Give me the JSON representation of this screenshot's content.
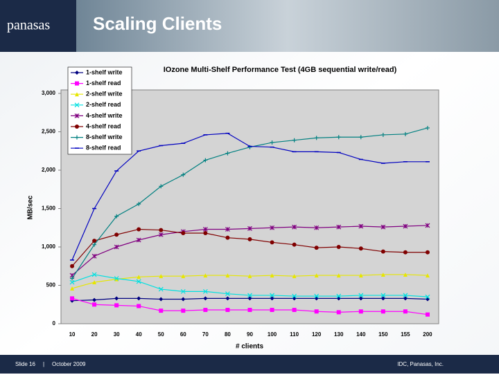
{
  "slide": {
    "logo": "panasas",
    "title": "Scaling Clients",
    "footer_slide": "Slide 16",
    "footer_separator": "|",
    "footer_date": "October 2009",
    "footer_right": "IDC, Panasas, Inc."
  },
  "chart_data": {
    "type": "line",
    "title": "IOzone Multi-Shelf Performance Test (4GB sequential write/read)",
    "y_label": "MB/sec",
    "x_label": "# clients",
    "categories": [
      "10",
      "20",
      "30",
      "40",
      "50",
      "60",
      "70",
      "80",
      "90",
      "100",
      "110",
      "120",
      "130",
      "140",
      "150",
      "155",
      "200"
    ],
    "ylim": [
      0,
      3000
    ],
    "yticks": [
      0,
      500,
      {
        "value": 1000,
        "label": "1,000"
      },
      {
        "value": 1500,
        "label": "1,500"
      },
      {
        "value": 2000,
        "label": "2,000"
      },
      {
        "value": 2500,
        "label": "2,500"
      },
      {
        "value": 3000,
        "label": "3,000"
      }
    ],
    "legend": "top-left",
    "series": [
      {
        "name": "1-shelf write",
        "color": "#000080",
        "marker": "diamond",
        "values": [
          300,
          310,
          330,
          330,
          320,
          320,
          330,
          330,
          330,
          330,
          330,
          330,
          330,
          330,
          330,
          330,
          320
        ]
      },
      {
        "name": "1-shelf read",
        "color": "#ff00ff",
        "marker": "square",
        "values": [
          330,
          250,
          240,
          230,
          170,
          170,
          180,
          180,
          180,
          180,
          180,
          160,
          150,
          160,
          160,
          160,
          120
        ]
      },
      {
        "name": "2-shelf write",
        "color": "#e6e600",
        "marker": "triangle",
        "values": [
          460,
          540,
          580,
          610,
          620,
          620,
          630,
          630,
          620,
          630,
          620,
          630,
          630,
          630,
          640,
          640,
          630
        ]
      },
      {
        "name": "2-shelf read",
        "color": "#00e0e0",
        "marker": "x",
        "values": [
          540,
          640,
          590,
          550,
          450,
          420,
          420,
          390,
          370,
          370,
          360,
          360,
          360,
          370,
          370,
          370,
          350
        ]
      },
      {
        "name": "4-shelf write",
        "color": "#800080",
        "marker": "star",
        "values": [
          630,
          880,
          1000,
          1090,
          1160,
          1200,
          1230,
          1230,
          1240,
          1250,
          1260,
          1250,
          1260,
          1270,
          1260,
          1270,
          1280
        ]
      },
      {
        "name": "4-shelf read",
        "color": "#800000",
        "marker": "circle",
        "values": [
          750,
          1080,
          1160,
          1230,
          1220,
          1180,
          1180,
          1120,
          1100,
          1060,
          1030,
          990,
          1000,
          980,
          940,
          930,
          930
        ]
      },
      {
        "name": "8-shelf write",
        "color": "#008080",
        "marker": "plus",
        "values": [
          590,
          1030,
          1400,
          1560,
          1790,
          1940,
          2130,
          2220,
          2300,
          2360,
          2390,
          2420,
          2430,
          2430,
          2460,
          2470,
          2550
        ]
      },
      {
        "name": "8-shelf read",
        "color": "#0000c0",
        "marker": "dash",
        "values": [
          830,
          1500,
          1990,
          2250,
          2320,
          2350,
          2460,
          2480,
          2310,
          2300,
          2240,
          2240,
          2230,
          2140,
          2090,
          2110,
          2110
        ]
      }
    ]
  }
}
